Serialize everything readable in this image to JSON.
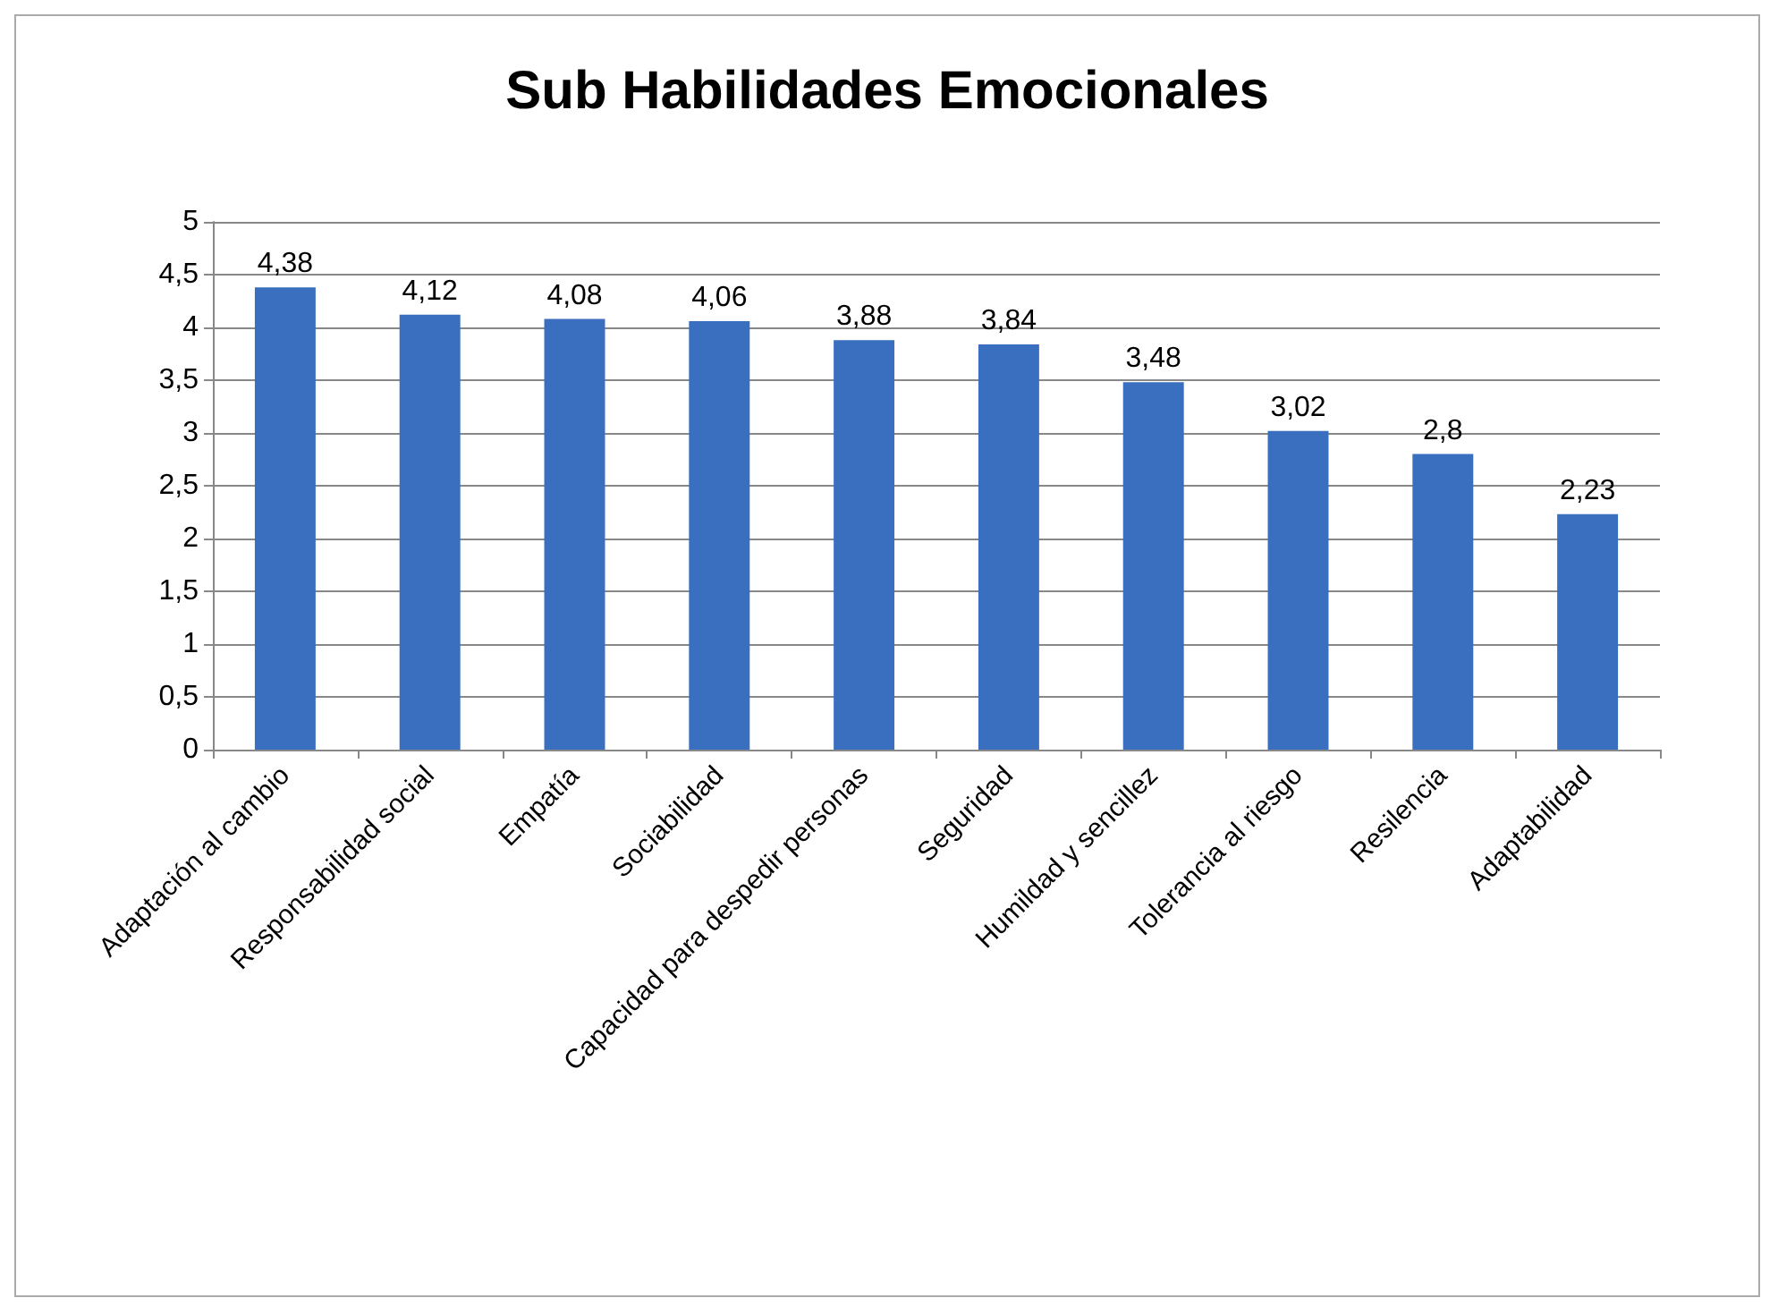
{
  "chart_data": {
    "type": "bar",
    "title": "Sub Habilidades Emocionales",
    "categories": [
      "Adaptación al cambio",
      "Responsabilidad social",
      "Empatía",
      "Sociabilidad",
      "Capacidad para despedir personas",
      "Seguridad",
      "Humildad y sencillez",
      "Tolerancia al riesgo",
      "Resilencia",
      "Adaptabilidad"
    ],
    "values": [
      4.38,
      4.12,
      4.08,
      4.06,
      3.88,
      3.84,
      3.48,
      3.02,
      2.8,
      2.23
    ],
    "value_labels": [
      "4,38",
      "4,12",
      "4,08",
      "4,06",
      "3,88",
      "3,84",
      "3,48",
      "3,02",
      "2,8",
      "2,23"
    ],
    "color": "#3a6fc0",
    "ylim": [
      0,
      5
    ],
    "yticks": [
      0,
      {
        "value": 0.5,
        "label": "0,5"
      },
      1,
      {
        "value": 1.5,
        "label": "1,5"
      },
      2,
      {
        "value": 2.5,
        "label": "2,5"
      },
      3,
      {
        "value": 3.5,
        "label": "3,5"
      },
      4,
      {
        "value": 4.5,
        "label": "4,5"
      },
      5
    ],
    "grid": "y"
  }
}
